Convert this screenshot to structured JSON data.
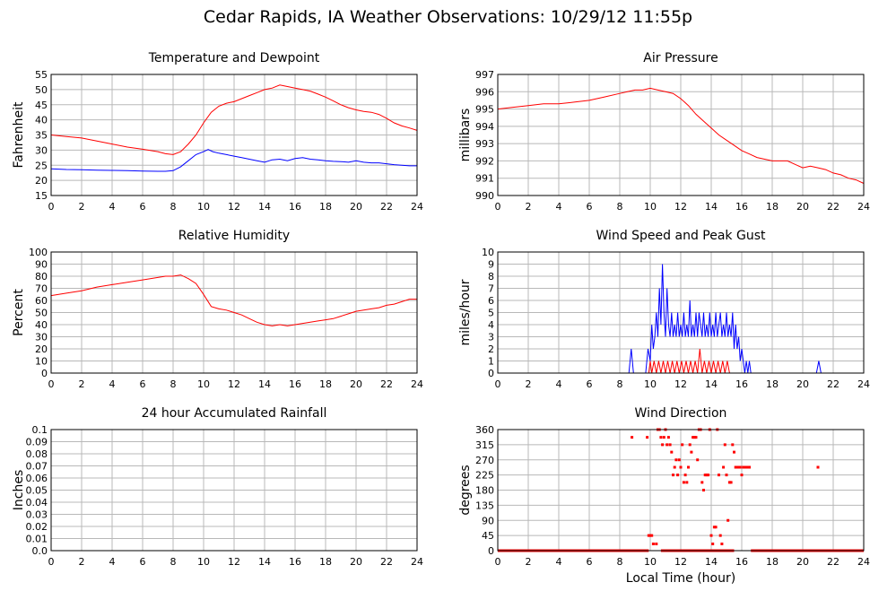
{
  "title": "Cedar Rapids, IA Weather Observations: 10/29/12 11:55p",
  "colors": {
    "red": "#ff0000",
    "blue": "#0000ff",
    "grid": "#b8b8b8",
    "axis": "#000000"
  },
  "chart_data": [
    {
      "type": "line",
      "title": "Temperature and Dewpoint",
      "xlabel": "",
      "ylabel": "Fahrenheit",
      "xlim": [
        0,
        24
      ],
      "ylim": [
        15,
        55
      ],
      "x_ticks": [
        0,
        2,
        4,
        6,
        8,
        10,
        12,
        14,
        16,
        18,
        20,
        22,
        24
      ],
      "y_ticks": [
        15,
        20,
        25,
        30,
        35,
        40,
        45,
        50,
        55
      ],
      "grid": true,
      "series": [
        {
          "color": "#ff0000",
          "x": [
            0,
            1,
            2,
            3,
            4,
            5,
            6,
            7,
            7.5,
            8,
            8.5,
            9,
            9.5,
            10,
            10.5,
            11,
            11.5,
            12,
            12.5,
            13,
            13.5,
            14,
            14.5,
            15,
            15.5,
            16,
            16.5,
            17,
            17.5,
            18,
            18.5,
            19,
            19.5,
            20,
            20.5,
            21,
            21.5,
            22,
            22.5,
            23,
            23.5,
            24
          ],
          "y": [
            35,
            34.5,
            34,
            33,
            32,
            31,
            30.3,
            29.5,
            28.8,
            28.5,
            29.5,
            32,
            35,
            39,
            42.5,
            44.5,
            45.5,
            46,
            47,
            48,
            49,
            50,
            50.5,
            51.5,
            51,
            50.5,
            50,
            49.5,
            48.5,
            47.5,
            46.3,
            45,
            44,
            43.3,
            42.8,
            42.5,
            41.8,
            40.5,
            39,
            38,
            37.3,
            36.5
          ]
        },
        {
          "color": "#0000ff",
          "x": [
            0,
            1,
            2,
            3,
            4,
            5,
            6,
            7,
            7.5,
            8,
            8.5,
            9,
            9.5,
            10,
            10.3,
            10.6,
            11,
            11.5,
            12,
            12.5,
            13,
            13.5,
            14,
            14.5,
            15,
            15.5,
            16,
            16.5,
            17,
            17.5,
            18,
            18.5,
            19,
            19.5,
            20,
            20.5,
            21,
            21.5,
            22,
            22.5,
            23,
            23.5,
            24
          ],
          "y": [
            23.8,
            23.6,
            23.5,
            23.4,
            23.3,
            23.2,
            23.1,
            23.0,
            23.0,
            23.2,
            24.5,
            26.5,
            28.5,
            29.5,
            30.2,
            29.5,
            29.0,
            28.5,
            28.0,
            27.5,
            27.0,
            26.5,
            26.0,
            26.8,
            27.0,
            26.5,
            27.2,
            27.5,
            27.0,
            26.8,
            26.5,
            26.3,
            26.2,
            26.0,
            26.5,
            26.0,
            25.8,
            25.8,
            25.5,
            25.2,
            25.0,
            24.8,
            24.8
          ]
        }
      ]
    },
    {
      "type": "line",
      "title": "Air Pressure",
      "xlabel": "",
      "ylabel": "millibars",
      "xlim": [
        0,
        24
      ],
      "ylim": [
        990,
        997
      ],
      "x_ticks": [
        0,
        2,
        4,
        6,
        8,
        10,
        12,
        14,
        16,
        18,
        20,
        22,
        24
      ],
      "y_ticks": [
        990,
        991,
        992,
        993,
        994,
        995,
        996,
        997
      ],
      "grid": true,
      "series": [
        {
          "color": "#ff0000",
          "x": [
            0,
            1,
            2,
            3,
            4,
            5,
            6,
            7,
            8,
            8.5,
            9,
            9.5,
            10,
            10.5,
            11,
            11.5,
            12,
            12.5,
            13,
            13.5,
            14,
            14.5,
            15,
            15.5,
            16,
            16.5,
            17,
            17.5,
            18,
            18.5,
            19,
            19.5,
            20,
            20.5,
            21,
            21.5,
            22,
            22.5,
            23,
            23.5,
            24
          ],
          "y": [
            995.0,
            995.1,
            995.2,
            995.3,
            995.3,
            995.4,
            995.5,
            995.7,
            995.9,
            996.0,
            996.1,
            996.1,
            996.2,
            996.1,
            996.0,
            995.9,
            995.6,
            995.2,
            994.7,
            994.3,
            993.9,
            993.5,
            993.2,
            992.9,
            992.6,
            992.4,
            992.2,
            992.1,
            992.0,
            992.0,
            992.0,
            991.8,
            991.6,
            991.7,
            991.6,
            991.5,
            991.3,
            991.2,
            991.0,
            990.9,
            990.7
          ]
        }
      ]
    },
    {
      "type": "line",
      "title": "Relative Humidity",
      "xlabel": "",
      "ylabel": "Percent",
      "xlim": [
        0,
        24
      ],
      "ylim": [
        0,
        100
      ],
      "x_ticks": [
        0,
        2,
        4,
        6,
        8,
        10,
        12,
        14,
        16,
        18,
        20,
        22,
        24
      ],
      "y_ticks": [
        0,
        10,
        20,
        30,
        40,
        50,
        60,
        70,
        80,
        90,
        100
      ],
      "grid": true,
      "series": [
        {
          "color": "#ff0000",
          "x": [
            0,
            1,
            2,
            3,
            4,
            5,
            6,
            7,
            7.5,
            8,
            8.5,
            9,
            9.5,
            10,
            10.5,
            11,
            11.5,
            12,
            12.5,
            13,
            13.5,
            14,
            14.5,
            15,
            15.5,
            16,
            16.5,
            17,
            17.5,
            18,
            18.5,
            19,
            19.5,
            20,
            20.5,
            21,
            21.5,
            22,
            22.5,
            23,
            23.5,
            24
          ],
          "y": [
            64,
            66,
            68,
            71,
            73,
            75,
            77,
            79,
            80,
            80,
            81,
            78,
            74,
            65,
            55,
            53,
            52,
            50,
            48,
            45,
            42,
            40,
            39,
            40,
            39,
            40,
            41,
            42,
            43,
            44,
            45,
            47,
            49,
            51,
            52,
            53,
            54,
            56,
            57,
            59,
            61,
            61
          ]
        }
      ]
    },
    {
      "type": "line",
      "title": "Wind Speed and Peak Gust",
      "xlabel": "",
      "ylabel": "miles/hour",
      "xlim": [
        0,
        24
      ],
      "ylim": [
        0,
        10
      ],
      "x_ticks": [
        0,
        2,
        4,
        6,
        8,
        10,
        12,
        14,
        16,
        18,
        20,
        22,
        24
      ],
      "y_ticks": [
        0,
        1,
        2,
        3,
        4,
        5,
        6,
        7,
        8,
        9,
        10
      ],
      "grid": true,
      "series": [
        {
          "color": "#ff0000",
          "x": [
            0,
            9.9,
            10.0,
            10.1,
            10.25,
            10.4,
            10.55,
            10.7,
            10.85,
            11.0,
            11.15,
            11.3,
            11.45,
            11.6,
            11.75,
            11.9,
            12.05,
            12.2,
            12.35,
            12.5,
            12.65,
            12.8,
            12.95,
            13.1,
            13.25,
            13.4,
            13.55,
            13.7,
            13.85,
            14.0,
            14.15,
            14.3,
            14.45,
            14.6,
            14.75,
            14.9,
            15.05,
            15.2,
            15.3,
            24
          ],
          "y": [
            0,
            0,
            1,
            0,
            1,
            0,
            1,
            0,
            1,
            0,
            1,
            0,
            1,
            0,
            1,
            0,
            1,
            0,
            1,
            0,
            1,
            0,
            1,
            0,
            2,
            0,
            1,
            0,
            1,
            0,
            1,
            0,
            1,
            0,
            1,
            0,
            1,
            0,
            0,
            0
          ]
        },
        {
          "color": "#0000ff",
          "x": [
            0,
            8.6,
            8.75,
            8.9,
            9.7,
            9.85,
            10.0,
            10.1,
            10.2,
            10.3,
            10.4,
            10.5,
            10.6,
            10.7,
            10.8,
            10.9,
            11.0,
            11.1,
            11.2,
            11.3,
            11.4,
            11.5,
            11.6,
            11.7,
            11.8,
            11.9,
            12.0,
            12.1,
            12.2,
            12.3,
            12.4,
            12.5,
            12.6,
            12.7,
            12.8,
            12.9,
            13.0,
            13.1,
            13.2,
            13.3,
            13.4,
            13.5,
            13.6,
            13.7,
            13.8,
            13.9,
            14.0,
            14.1,
            14.2,
            14.3,
            14.4,
            14.5,
            14.6,
            14.7,
            14.8,
            14.9,
            15.0,
            15.1,
            15.2,
            15.3,
            15.4,
            15.5,
            15.6,
            15.7,
            15.8,
            15.9,
            16.0,
            16.1,
            16.2,
            16.3,
            16.4,
            16.5,
            16.6,
            20.9,
            21.05,
            21.2,
            24
          ],
          "y": [
            0,
            0,
            2,
            0,
            0,
            2,
            1,
            4,
            2,
            3,
            5,
            3,
            7,
            4,
            9,
            5,
            3,
            7,
            4,
            3,
            5,
            3,
            4,
            3,
            5,
            3,
            4,
            3,
            5,
            3,
            4,
            3,
            6,
            3,
            4,
            3,
            5,
            3,
            5,
            4,
            3,
            5,
            3,
            4,
            3,
            5,
            3,
            4,
            3,
            5,
            3,
            4,
            5,
            3,
            4,
            3,
            5,
            3,
            4,
            3,
            5,
            2,
            4,
            2,
            3,
            1,
            2,
            1,
            0,
            1,
            0,
            1,
            0,
            0,
            1,
            0,
            0
          ]
        }
      ]
    },
    {
      "type": "line",
      "title": "24 hour Accumulated Rainfall",
      "xlabel": "",
      "ylabel": "Inches",
      "xlim": [
        0,
        24
      ],
      "ylim": [
        0,
        0.1
      ],
      "x_ticks": [
        0,
        2,
        4,
        6,
        8,
        10,
        12,
        14,
        16,
        18,
        20,
        22,
        24
      ],
      "y_ticks": [
        "0.0",
        "0.01",
        "0.02",
        "0.03",
        "0.04",
        "0.05",
        "0.06",
        "0.07",
        "0.08",
        "0.09",
        "0.1"
      ],
      "grid": true,
      "series": [
        {
          "color": "#ff0000",
          "x": [
            0,
            24
          ],
          "y": [
            0,
            0
          ]
        }
      ]
    },
    {
      "type": "scatter",
      "title": "Wind Direction",
      "xlabel": "Local Time (hour)",
      "ylabel": "degrees",
      "xlim": [
        0,
        24
      ],
      "ylim": [
        0,
        360
      ],
      "x_ticks": [
        0,
        2,
        4,
        6,
        8,
        10,
        12,
        14,
        16,
        18,
        20,
        22,
        24
      ],
      "y_ticks": [
        0,
        45,
        90,
        135,
        180,
        225,
        270,
        315,
        360
      ],
      "grid": true,
      "baseline": {
        "y": 0,
        "x_ranges": [
          [
            0,
            9.9
          ],
          [
            10.7,
            15.5
          ],
          [
            16.6,
            24
          ]
        ]
      },
      "series": [
        {
          "color": "#ff0000",
          "x": [
            8.8,
            9.8,
            9.9,
            10.0,
            10.1,
            10.2,
            10.4,
            10.5,
            10.6,
            10.7,
            10.8,
            10.9,
            11.0,
            11.1,
            11.2,
            11.3,
            11.4,
            11.5,
            11.6,
            11.7,
            11.8,
            11.9,
            12.0,
            12.1,
            12.2,
            12.3,
            12.4,
            12.5,
            12.6,
            12.7,
            12.8,
            12.9,
            13.0,
            13.1,
            13.2,
            13.3,
            13.4,
            13.5,
            13.6,
            13.7,
            13.8,
            13.9,
            14.0,
            14.1,
            14.2,
            14.3,
            14.4,
            14.5,
            14.6,
            14.7,
            14.8,
            14.9,
            15.0,
            15.1,
            15.2,
            15.3,
            15.4,
            15.5,
            15.6,
            15.7,
            15.8,
            15.9,
            16.0,
            16.1,
            16.2,
            16.3,
            16.4,
            16.5,
            21.0
          ],
          "y": [
            337,
            337,
            45,
            45,
            45,
            20,
            20,
            360,
            360,
            337,
            315,
            337,
            360,
            315,
            337,
            315,
            293,
            225,
            248,
            270,
            225,
            270,
            248,
            315,
            203,
            225,
            203,
            248,
            315,
            293,
            337,
            337,
            337,
            270,
            360,
            360,
            203,
            180,
            225,
            225,
            225,
            360,
            45,
            20,
            70,
            70,
            360,
            225,
            45,
            20,
            248,
            315,
            225,
            90,
            203,
            203,
            315,
            293,
            248,
            248,
            248,
            248,
            225,
            248,
            248,
            248,
            248,
            248,
            248
          ]
        }
      ]
    }
  ]
}
